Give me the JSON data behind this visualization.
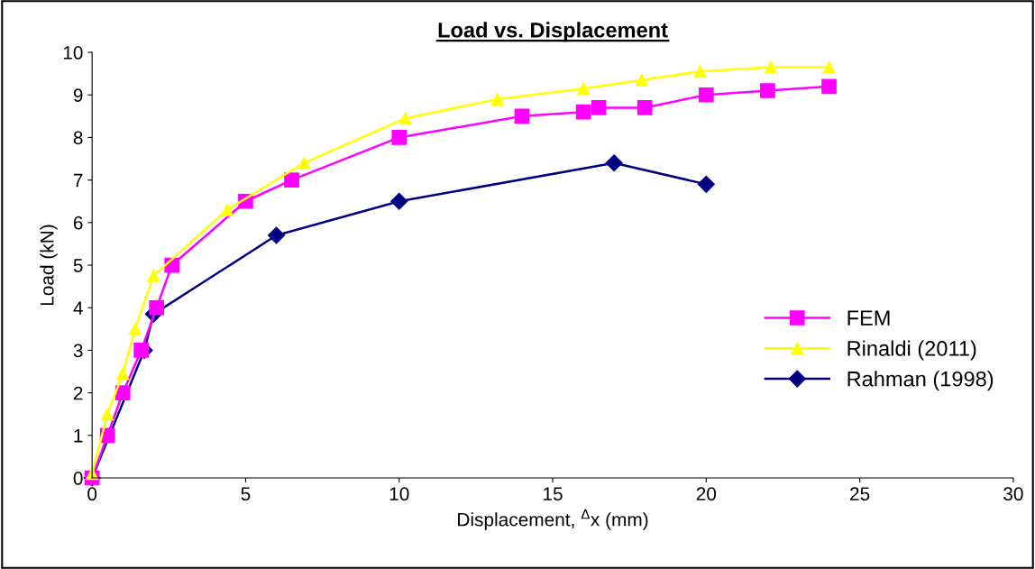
{
  "chart_data": {
    "type": "line",
    "title": "Load vs. Displacement",
    "xlabel": "Displacement, $^{Δ}$x (mm)",
    "ylabel": "Load (kN)",
    "xlim": [
      0,
      30
    ],
    "xticks": [
      0,
      5,
      10,
      15,
      20,
      25,
      30
    ],
    "ylim": [
      0,
      10
    ],
    "yticks": [
      0,
      1,
      2,
      3,
      4,
      5,
      6,
      7,
      8,
      9,
      10
    ],
    "grid": false,
    "legend": "center right",
    "series": [
      {
        "name": "FEM",
        "color": "#ff00ff",
        "marker": "square",
        "x": [
          0,
          0.5,
          1,
          1.6,
          2.1,
          2.6,
          5,
          6.5,
          10,
          14,
          16,
          16.5,
          18,
          20,
          22,
          24
        ],
        "values": [
          0,
          1,
          2,
          3,
          4,
          5,
          6.5,
          7,
          8,
          8.5,
          8.6,
          8.7,
          8.7,
          9,
          9.1,
          9.2
        ]
      },
      {
        "name": "Rinaldi (2011)",
        "color": "#ffff00",
        "marker": "triangle",
        "x": [
          0,
          0.5,
          1,
          1.4,
          2,
          4.4,
          6.9,
          10.2,
          13.2,
          16,
          17.9,
          19.8,
          22.1,
          24
        ],
        "values": [
          0.1,
          1.5,
          2.45,
          3.5,
          4.75,
          6.3,
          7.4,
          8.45,
          8.9,
          9.15,
          9.35,
          9.55,
          9.65,
          9.65
        ]
      },
      {
        "name": "Rahman (1998)",
        "color": "#000080",
        "marker": "diamond",
        "x": [
          0,
          1.7,
          2,
          6,
          10,
          17,
          20
        ],
        "values": [
          0,
          3,
          3.85,
          5.7,
          6.5,
          7.4,
          6.9
        ]
      }
    ]
  }
}
